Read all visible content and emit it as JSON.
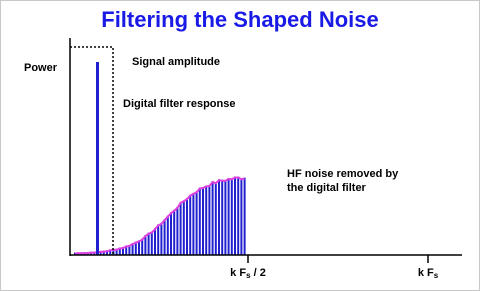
{
  "title": "Filtering the Shaped Noise",
  "y_axis_label": "Power",
  "annotations": [
    "Signal  amplitude",
    "Digital filter response",
    "HF noise removed  by",
    "the digital filter"
  ],
  "x_labels": [
    {
      "main": "k F",
      "sub": "s",
      "rest": " / 2"
    },
    {
      "main": "k F",
      "sub": "s"
    }
  ]
}
